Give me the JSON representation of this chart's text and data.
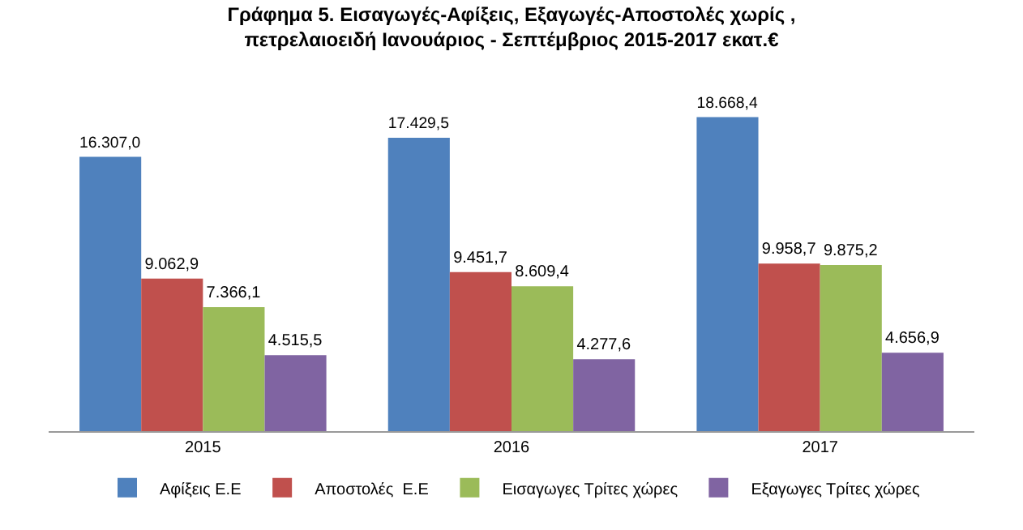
{
  "chart_data": {
    "type": "bar",
    "title": "Γράφημα 5. Εισαγωγές-Αφίξεις, Εξαγωγές-Αποστολές χωρίς ,\nπετρελαιοειδή Ιανουάριος - Σεπτέμβριος 2015-2017 εκατ.€",
    "categories": [
      "2015",
      "2016",
      "2017"
    ],
    "series": [
      {
        "name": "Αφίξεις Ε.Ε",
        "color": "#4f81bd",
        "values": [
          16307.0,
          17429.5,
          18668.4
        ],
        "value_labels": [
          "16.307,0",
          "17.429,5",
          "18.668,4"
        ]
      },
      {
        "name": "Αποστολές  Ε.Ε",
        "color": "#c0504d",
        "values": [
          9062.9,
          9451.7,
          9958.7
        ],
        "value_labels": [
          "9.062,9",
          "9.451,7",
          "9.958,7"
        ]
      },
      {
        "name": "Εισαγωγες Τρίτες χώρες",
        "color": "#9bbb59",
        "values": [
          7366.1,
          8609.4,
          9875.2
        ],
        "value_labels": [
          "7.366,1",
          "8.609,4",
          "9.875,2"
        ]
      },
      {
        "name": "Εξαγωγες Τρίτες χώρες",
        "color": "#8064a2",
        "values": [
          4515.5,
          4277.6,
          4656.9
        ],
        "value_labels": [
          "4.515,5",
          "4.277,6",
          "4.656,9"
        ]
      }
    ],
    "legend": "bottom"
  }
}
